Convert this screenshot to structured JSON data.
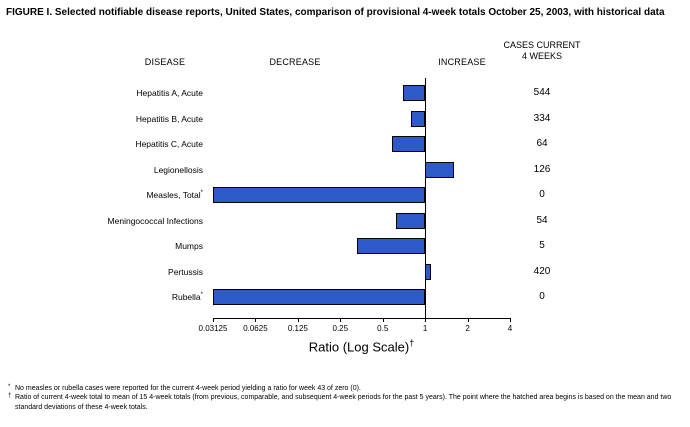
{
  "title": "FIGURE I. Selected notifiable disease reports, United States, comparison of provisional 4-week totals October 25, 2003, with historical data",
  "headers": {
    "disease": "DISEASE",
    "decrease": "DECREASE",
    "increase": "INCREASE",
    "cases_line1": "CASES CURRENT",
    "cases_line2": "4 WEEKS"
  },
  "chart_data": {
    "type": "bar",
    "orientation": "horizontal",
    "scale": "log2",
    "baseline": 1,
    "x_ticks": [
      0.03125,
      0.0625,
      0.125,
      0.25,
      0.5,
      1,
      2,
      4
    ],
    "x_tick_labels": [
      "0.03125",
      "0.0625",
      "0.125",
      "0.25",
      "0.5",
      "1",
      "2",
      "4"
    ],
    "xlabel": "Ratio (Log Scale)",
    "xlabel_superscript": "†",
    "bar_color": "#2d5ac8",
    "rows": [
      {
        "disease": "Hepatitis A, Acute",
        "marker": "",
        "ratio": 0.7,
        "cases": "544"
      },
      {
        "disease": "Hepatitis B, Acute",
        "marker": "",
        "ratio": 0.8,
        "cases": "334"
      },
      {
        "disease": "Hepatitis C, Acute",
        "marker": "",
        "ratio": 0.58,
        "cases": "64"
      },
      {
        "disease": "Legionellosis",
        "marker": "",
        "ratio": 1.6,
        "cases": "126"
      },
      {
        "disease": "Measles, Total",
        "marker": "*",
        "ratio": 0.03125,
        "cases": "0"
      },
      {
        "disease": "Meningococcal Infections",
        "marker": "",
        "ratio": 0.62,
        "cases": "54"
      },
      {
        "disease": "Mumps",
        "marker": "",
        "ratio": 0.33,
        "cases": "5"
      },
      {
        "disease": "Pertussis",
        "marker": "",
        "ratio": 1.1,
        "cases": "420"
      },
      {
        "disease": "Rubella",
        "marker": "*",
        "ratio": 0.03125,
        "cases": "0"
      }
    ]
  },
  "footnotes": [
    {
      "marker": "*",
      "text": "No measles or rubella cases were reported for the current 4-week period yielding a ratio for week 43 of zero (0)."
    },
    {
      "marker": "†",
      "text": "Ratio of current 4-week total to mean of 15 4-week totals (from previous, comparable, and subsequent 4-week periods for the past 5 years). The point where the hatched area begins is based on the mean and two standard deviations of these 4-week totals."
    }
  ]
}
